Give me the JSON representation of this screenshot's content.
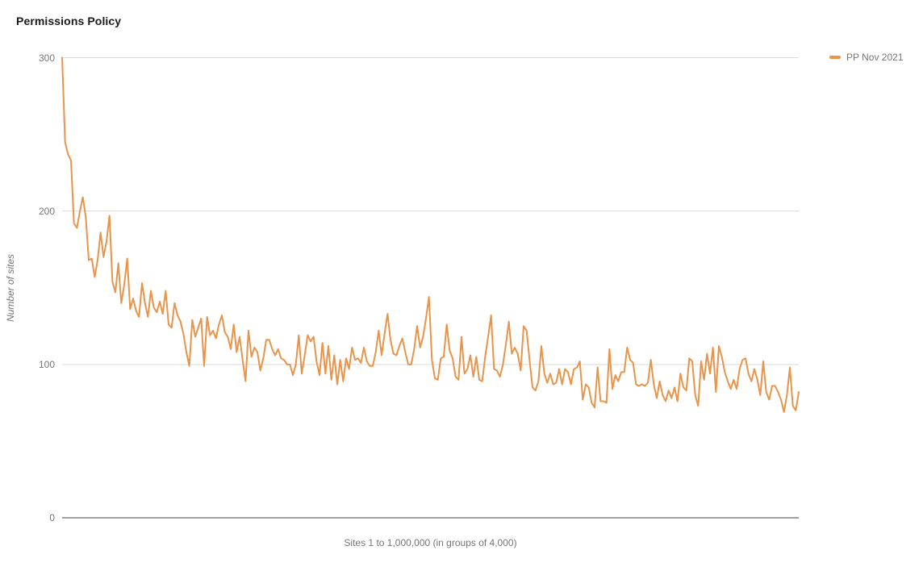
{
  "chart_data": {
    "type": "line",
    "title": "Permissions Policy",
    "xlabel": "Sites 1 to 1,000,000 (in groups of 4,000)",
    "ylabel": "Number of sites",
    "ylim": [
      0,
      300
    ],
    "y_ticks": [
      0,
      100,
      200,
      300
    ],
    "grid": true,
    "legend_position": "top-right",
    "x_description": "250 consecutive groups of 4,000 sites spanning sites 1 to 1,000,000",
    "series": [
      {
        "name": "PP Nov 2021",
        "color": "#e8944a",
        "values": [
          300,
          245,
          237,
          233,
          192,
          189,
          200,
          209,
          196,
          168,
          169,
          157,
          168,
          186,
          170,
          180,
          197,
          154,
          147,
          166,
          140,
          152,
          169,
          136,
          143,
          135,
          131,
          153,
          140,
          131,
          148,
          137,
          134,
          141,
          133,
          148,
          126,
          124,
          140,
          132,
          128,
          120,
          108,
          99,
          129,
          118,
          124,
          130,
          99,
          131,
          119,
          122,
          117,
          126,
          132,
          121,
          118,
          110,
          126,
          108,
          118,
          103,
          89,
          122,
          105,
          111,
          108,
          96,
          104,
          116,
          116,
          110,
          106,
          110,
          104,
          103,
          100,
          100,
          93,
          100,
          119,
          94,
          106,
          119,
          115,
          118,
          102,
          93,
          114,
          94,
          112,
          90,
          106,
          87,
          103,
          89,
          104,
          97,
          111,
          103,
          104,
          101,
          111,
          102,
          99,
          99,
          108,
          122,
          106,
          120,
          133,
          116,
          107,
          106,
          112,
          117,
          108,
          100,
          100,
          110,
          125,
          111,
          118,
          130,
          144,
          103,
          91,
          90,
          104,
          105,
          126,
          109,
          104,
          92,
          90,
          118,
          94,
          97,
          106,
          92,
          105,
          90,
          89,
          105,
          118,
          132,
          97,
          96,
          92,
          100,
          113,
          128,
          107,
          111,
          107,
          96,
          125,
          122,
          103,
          85,
          83,
          89,
          112,
          94,
          88,
          94,
          87,
          88,
          97,
          87,
          97,
          95,
          87,
          97,
          98,
          102,
          77,
          87,
          85,
          75,
          72,
          98,
          76,
          76,
          75,
          110,
          84,
          93,
          89,
          95,
          95,
          111,
          103,
          101,
          87,
          86,
          87,
          86,
          88,
          103,
          87,
          78,
          89,
          80,
          76,
          83,
          78,
          85,
          76,
          94,
          85,
          83,
          104,
          102,
          80,
          73,
          102,
          90,
          107,
          94,
          111,
          82,
          112,
          105,
          95,
          89,
          84,
          90,
          84,
          97,
          103,
          104,
          94,
          89,
          97,
          90,
          80,
          102,
          82,
          77,
          86,
          86,
          82,
          77,
          69,
          80,
          98,
          73,
          70,
          82
        ]
      }
    ]
  },
  "legend": {
    "label": "PP Nov 2021"
  },
  "colors": {
    "line": "#e8944a",
    "gridline": "#dadada",
    "axis_baseline": "#424242",
    "tick_text": "#757575",
    "title_text": "#1a1a1a"
  }
}
